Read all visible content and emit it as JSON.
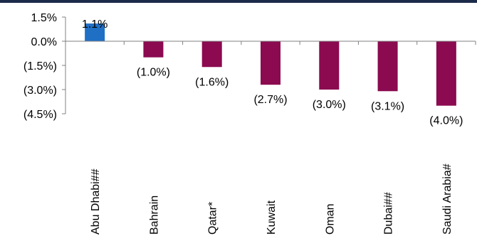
{
  "chart_data": {
    "type": "bar",
    "categories": [
      "Abu Dhabi##",
      "Bahrain",
      "Qatar*",
      "Kuwait",
      "Oman",
      "Dubai##",
      "Saudi Arabia#"
    ],
    "values": [
      1.1,
      -1.0,
      -1.6,
      -2.7,
      -3.0,
      -3.1,
      -4.0
    ],
    "data_labels": [
      "1.1%",
      "(1.0%)",
      "(1.6%)",
      "(2.7%)",
      "(3.0%)",
      "(3.1%)",
      "(4.0%)"
    ],
    "y_ticks": [
      1.5,
      0.0,
      -1.5,
      -3.0,
      -4.5
    ],
    "y_tick_labels": [
      "1.5%",
      "0.0%",
      "(1.5%)",
      "(3.0%)",
      "(4.5%)"
    ],
    "ylim": [
      -4.5,
      1.5
    ],
    "title": "",
    "xlabel": "",
    "ylabel": "",
    "grid": false,
    "colors": {
      "positive": "#1f6fc5",
      "negative": "#8b0a50",
      "top_rule": "#1c2a4a",
      "axis": "#808080"
    }
  }
}
